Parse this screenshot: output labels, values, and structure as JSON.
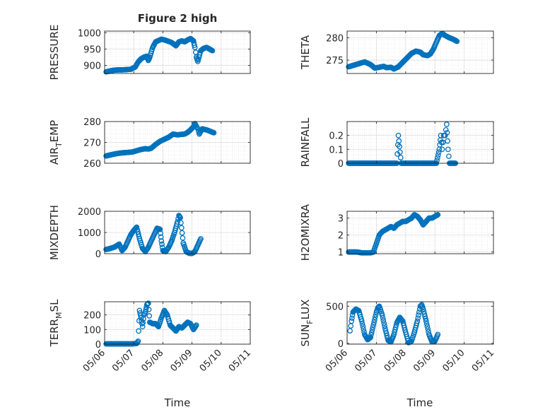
{
  "figure": {
    "title": "Figure 2 high",
    "xlabel": "Time",
    "marker_color": "#0072BD",
    "background": "#ffffff",
    "grid_color": "#dfdfdf",
    "axis_color": "#262626"
  },
  "chart_data": [
    {
      "type": "scatter",
      "ylabel": "PRESSURE",
      "title": "Figure 2 high",
      "ylim": [
        875,
        1005
      ],
      "yticks": [
        900,
        950,
        1000
      ],
      "xlim": [
        0,
        5
      ],
      "xticks": [
        "05/06",
        "05/07",
        "05/08",
        "05/09",
        "05/10",
        "05/11"
      ],
      "xticklabels_shown": false,
      "grid": true,
      "points": [
        [
          0.05,
          880
        ],
        [
          0.15,
          882
        ],
        [
          0.3,
          885
        ],
        [
          0.45,
          886
        ],
        [
          0.6,
          886
        ],
        [
          0.75,
          887
        ],
        [
          0.9,
          888
        ],
        [
          1.05,
          895
        ],
        [
          1.15,
          910
        ],
        [
          1.25,
          920
        ],
        [
          1.35,
          925
        ],
        [
          1.45,
          928
        ],
        [
          1.5,
          915
        ],
        [
          1.55,
          925
        ],
        [
          1.65,
          955
        ],
        [
          1.75,
          972
        ],
        [
          1.85,
          976
        ],
        [
          1.95,
          980
        ],
        [
          2.05,
          978
        ],
        [
          2.15,
          975
        ],
        [
          2.3,
          970
        ],
        [
          2.45,
          960
        ],
        [
          2.55,
          972
        ],
        [
          2.65,
          975
        ],
        [
          2.75,
          972
        ],
        [
          2.85,
          978
        ],
        [
          2.95,
          982
        ],
        [
          3.05,
          975
        ],
        [
          3.1,
          955
        ],
        [
          3.15,
          925
        ],
        [
          3.2,
          912
        ],
        [
          3.3,
          945
        ],
        [
          3.4,
          952
        ],
        [
          3.5,
          955
        ],
        [
          3.6,
          950
        ],
        [
          3.7,
          945
        ]
      ]
    },
    {
      "type": "scatter",
      "ylabel": "THETA",
      "ylim": [
        272,
        281.5
      ],
      "yticks": [
        275,
        280
      ],
      "xlim": [
        0,
        5
      ],
      "xticks": [
        "05/06",
        "05/07",
        "05/08",
        "05/09",
        "05/10",
        "05/11"
      ],
      "xticklabels_shown": false,
      "grid": true,
      "points": [
        [
          0.05,
          273.5
        ],
        [
          0.2,
          273.8
        ],
        [
          0.4,
          274.2
        ],
        [
          0.6,
          274.6
        ],
        [
          0.8,
          274.0
        ],
        [
          0.95,
          273.2
        ],
        [
          1.1,
          273.4
        ],
        [
          1.25,
          273.6
        ],
        [
          1.35,
          273.3
        ],
        [
          1.5,
          273.4
        ],
        [
          1.6,
          273.0
        ],
        [
          1.75,
          273.5
        ],
        [
          1.9,
          274.5
        ],
        [
          2.05,
          275.5
        ],
        [
          2.2,
          276.5
        ],
        [
          2.35,
          277.0
        ],
        [
          2.5,
          276.8
        ],
        [
          2.6,
          276.2
        ],
        [
          2.75,
          276.0
        ],
        [
          2.85,
          276.4
        ],
        [
          2.95,
          277.5
        ],
        [
          3.05,
          279.0
        ],
        [
          3.15,
          280.5
        ],
        [
          3.25,
          281.0
        ],
        [
          3.35,
          280.5
        ],
        [
          3.5,
          280.0
        ],
        [
          3.65,
          279.6
        ],
        [
          3.75,
          279.2
        ]
      ]
    },
    {
      "type": "scatter",
      "ylabel": "AIR_TEMP",
      "ylim": [
        260,
        280
      ],
      "yticks": [
        260,
        270,
        280
      ],
      "xlim": [
        0,
        5
      ],
      "xticks": [
        "05/06",
        "05/07",
        "05/08",
        "05/09",
        "05/10",
        "05/11"
      ],
      "xticklabels_shown": false,
      "grid": true,
      "points": [
        [
          0.05,
          263.5
        ],
        [
          0.2,
          264.0
        ],
        [
          0.4,
          264.6
        ],
        [
          0.6,
          265.0
        ],
        [
          0.8,
          265.2
        ],
        [
          0.95,
          265.4
        ],
        [
          1.1,
          266.0
        ],
        [
          1.25,
          266.6
        ],
        [
          1.4,
          267.0
        ],
        [
          1.5,
          266.8
        ],
        [
          1.6,
          267.2
        ],
        [
          1.75,
          269.0
        ],
        [
          1.9,
          270.5
        ],
        [
          2.05,
          271.5
        ],
        [
          2.2,
          272.5
        ],
        [
          2.35,
          274.0
        ],
        [
          2.5,
          273.6
        ],
        [
          2.6,
          273.8
        ],
        [
          2.75,
          274.0
        ],
        [
          2.85,
          274.8
        ],
        [
          2.95,
          276.0
        ],
        [
          3.05,
          277.5
        ],
        [
          3.1,
          279.0
        ],
        [
          3.2,
          276.5
        ],
        [
          3.25,
          274.0
        ],
        [
          3.35,
          276.5
        ],
        [
          3.5,
          276.0
        ],
        [
          3.65,
          275.2
        ],
        [
          3.75,
          274.6
        ]
      ]
    },
    {
      "type": "scatter",
      "ylabel": "RAINFALL",
      "ylim": [
        0,
        0.3
      ],
      "yticks": [
        0,
        0.1,
        0.2
      ],
      "xlim": [
        0,
        5
      ],
      "xticks": [
        "05/06",
        "05/07",
        "05/08",
        "05/09",
        "05/10",
        "05/11"
      ],
      "xticklabels_shown": false,
      "grid": true,
      "points": [
        [
          0.05,
          0
        ],
        [
          0.2,
          0
        ],
        [
          0.35,
          0
        ],
        [
          0.5,
          0
        ],
        [
          0.65,
          0
        ],
        [
          0.8,
          0
        ],
        [
          0.95,
          0
        ],
        [
          1.1,
          0
        ],
        [
          1.25,
          0
        ],
        [
          1.4,
          0
        ],
        [
          1.55,
          0
        ],
        [
          1.7,
          0
        ],
        [
          1.75,
          0.2
        ],
        [
          1.85,
          0
        ],
        [
          2.0,
          0
        ],
        [
          2.15,
          0
        ],
        [
          2.3,
          0
        ],
        [
          2.45,
          0
        ],
        [
          2.6,
          0
        ],
        [
          2.75,
          0
        ],
        [
          2.9,
          0
        ],
        [
          3.05,
          0
        ],
        [
          3.15,
          0.1
        ],
        [
          3.2,
          0.2
        ],
        [
          3.25,
          0.1
        ],
        [
          3.3,
          0.2
        ],
        [
          3.35,
          0.2
        ],
        [
          3.4,
          0.28
        ],
        [
          3.45,
          0.1
        ],
        [
          3.5,
          0
        ],
        [
          3.6,
          0
        ],
        [
          3.7,
          0
        ]
      ]
    },
    {
      "type": "scatter",
      "ylabel": "MIXDEPTH",
      "ylim": [
        0,
        2000
      ],
      "yticks": [
        0,
        1000,
        2000
      ],
      "xlim": [
        0,
        5
      ],
      "xticks": [
        "05/06",
        "05/07",
        "05/08",
        "05/09",
        "05/10",
        "05/11"
      ],
      "xticklabels_shown": false,
      "grid": true,
      "points": [
        [
          0.05,
          200
        ],
        [
          0.2,
          250
        ],
        [
          0.35,
          320
        ],
        [
          0.5,
          450
        ],
        [
          0.6,
          150
        ],
        [
          0.7,
          300
        ],
        [
          0.8,
          600
        ],
        [
          0.9,
          900
        ],
        [
          1.0,
          1100
        ],
        [
          1.1,
          1250
        ],
        [
          1.2,
          700
        ],
        [
          1.3,
          250
        ],
        [
          1.4,
          100
        ],
        [
          1.5,
          300
        ],
        [
          1.6,
          600
        ],
        [
          1.7,
          900
        ],
        [
          1.8,
          1200
        ],
        [
          1.9,
          1150
        ],
        [
          1.95,
          600
        ],
        [
          2.0,
          150
        ],
        [
          2.1,
          100
        ],
        [
          2.2,
          300
        ],
        [
          2.3,
          600
        ],
        [
          2.4,
          1000
        ],
        [
          2.5,
          1500
        ],
        [
          2.55,
          1800
        ],
        [
          2.6,
          1700
        ],
        [
          2.7,
          500
        ],
        [
          2.8,
          100
        ],
        [
          2.9,
          20
        ],
        [
          3.0,
          10
        ],
        [
          3.1,
          100
        ],
        [
          3.2,
          400
        ],
        [
          3.3,
          700
        ]
      ]
    },
    {
      "type": "scatter",
      "ylabel": "H2OMIXRA",
      "ylim": [
        0.9,
        3.4
      ],
      "yticks": [
        1,
        2,
        3
      ],
      "xlim": [
        0,
        5
      ],
      "xticks": [
        "05/06",
        "05/07",
        "05/08",
        "05/09",
        "05/10",
        "05/11"
      ],
      "xticklabels_shown": false,
      "grid": true,
      "points": [
        [
          0.05,
          1.0
        ],
        [
          0.2,
          1.0
        ],
        [
          0.35,
          1.0
        ],
        [
          0.5,
          0.95
        ],
        [
          0.65,
          0.95
        ],
        [
          0.8,
          0.95
        ],
        [
          0.9,
          1.0
        ],
        [
          1.0,
          1.5
        ],
        [
          1.1,
          2.0
        ],
        [
          1.2,
          2.2
        ],
        [
          1.3,
          2.3
        ],
        [
          1.4,
          2.4
        ],
        [
          1.5,
          2.5
        ],
        [
          1.6,
          2.4
        ],
        [
          1.7,
          2.6
        ],
        [
          1.8,
          2.7
        ],
        [
          1.9,
          2.8
        ],
        [
          2.0,
          2.8
        ],
        [
          2.1,
          2.9
        ],
        [
          2.2,
          3.0
        ],
        [
          2.3,
          3.2
        ],
        [
          2.4,
          3.1
        ],
        [
          2.5,
          2.9
        ],
        [
          2.6,
          2.6
        ],
        [
          2.7,
          2.8
        ],
        [
          2.8,
          3.0
        ],
        [
          2.9,
          3.0
        ],
        [
          3.0,
          3.1
        ],
        [
          3.1,
          3.2
        ]
      ]
    },
    {
      "type": "scatter",
      "ylabel": "TERR_MSL",
      "ylim": [
        0,
        290
      ],
      "yticks": [
        0,
        100,
        200
      ],
      "xlim": [
        0,
        5
      ],
      "xticks": [
        "05/06",
        "05/07",
        "05/08",
        "05/09",
        "05/10",
        "05/11"
      ],
      "xticklabels_shown": true,
      "grid": true,
      "points": [
        [
          0.05,
          2
        ],
        [
          0.2,
          2
        ],
        [
          0.35,
          2
        ],
        [
          0.5,
          2
        ],
        [
          0.65,
          2
        ],
        [
          0.8,
          2
        ],
        [
          0.95,
          2
        ],
        [
          1.1,
          5
        ],
        [
          1.15,
          20
        ],
        [
          1.2,
          230
        ],
        [
          1.25,
          180
        ],
        [
          1.3,
          120
        ],
        [
          1.35,
          200
        ],
        [
          1.4,
          220
        ],
        [
          1.45,
          270
        ],
        [
          1.5,
          280
        ],
        [
          1.55,
          150
        ],
        [
          1.65,
          140
        ],
        [
          1.75,
          140
        ],
        [
          1.85,
          120
        ],
        [
          1.95,
          180
        ],
        [
          2.05,
          230
        ],
        [
          2.15,
          200
        ],
        [
          2.25,
          130
        ],
        [
          2.35,
          110
        ],
        [
          2.45,
          90
        ],
        [
          2.55,
          120
        ],
        [
          2.65,
          110
        ],
        [
          2.75,
          130
        ],
        [
          2.85,
          150
        ],
        [
          2.95,
          140
        ],
        [
          3.05,
          100
        ],
        [
          3.15,
          130
        ]
      ]
    },
    {
      "type": "scatter",
      "ylabel": "SUN_FLUX",
      "ylim": [
        -10,
        560
      ],
      "yticks": [
        0,
        500
      ],
      "xlim": [
        0,
        5
      ],
      "xticks": [
        "05/06",
        "05/07",
        "05/08",
        "05/09",
        "05/10",
        "05/11"
      ],
      "xticklabels_shown": true,
      "grid": true,
      "points": [
        [
          0.1,
          170
        ],
        [
          0.15,
          300
        ],
        [
          0.2,
          420
        ],
        [
          0.3,
          460
        ],
        [
          0.4,
          440
        ],
        [
          0.5,
          300
        ],
        [
          0.6,
          120
        ],
        [
          0.7,
          50
        ],
        [
          0.8,
          80
        ],
        [
          0.9,
          250
        ],
        [
          1.0,
          420
        ],
        [
          1.05,
          480
        ],
        [
          1.1,
          500
        ],
        [
          1.2,
          380
        ],
        [
          1.3,
          200
        ],
        [
          1.4,
          40
        ],
        [
          1.5,
          20
        ],
        [
          1.6,
          120
        ],
        [
          1.7,
          280
        ],
        [
          1.8,
          350
        ],
        [
          1.9,
          300
        ],
        [
          2.0,
          150
        ],
        [
          2.1,
          10
        ],
        [
          2.2,
          30
        ],
        [
          2.3,
          150
        ],
        [
          2.4,
          300
        ],
        [
          2.5,
          500
        ],
        [
          2.55,
          520
        ],
        [
          2.6,
          460
        ],
        [
          2.7,
          300
        ],
        [
          2.8,
          120
        ],
        [
          2.9,
          20
        ],
        [
          3.0,
          30
        ],
        [
          3.1,
          120
        ]
      ]
    }
  ]
}
